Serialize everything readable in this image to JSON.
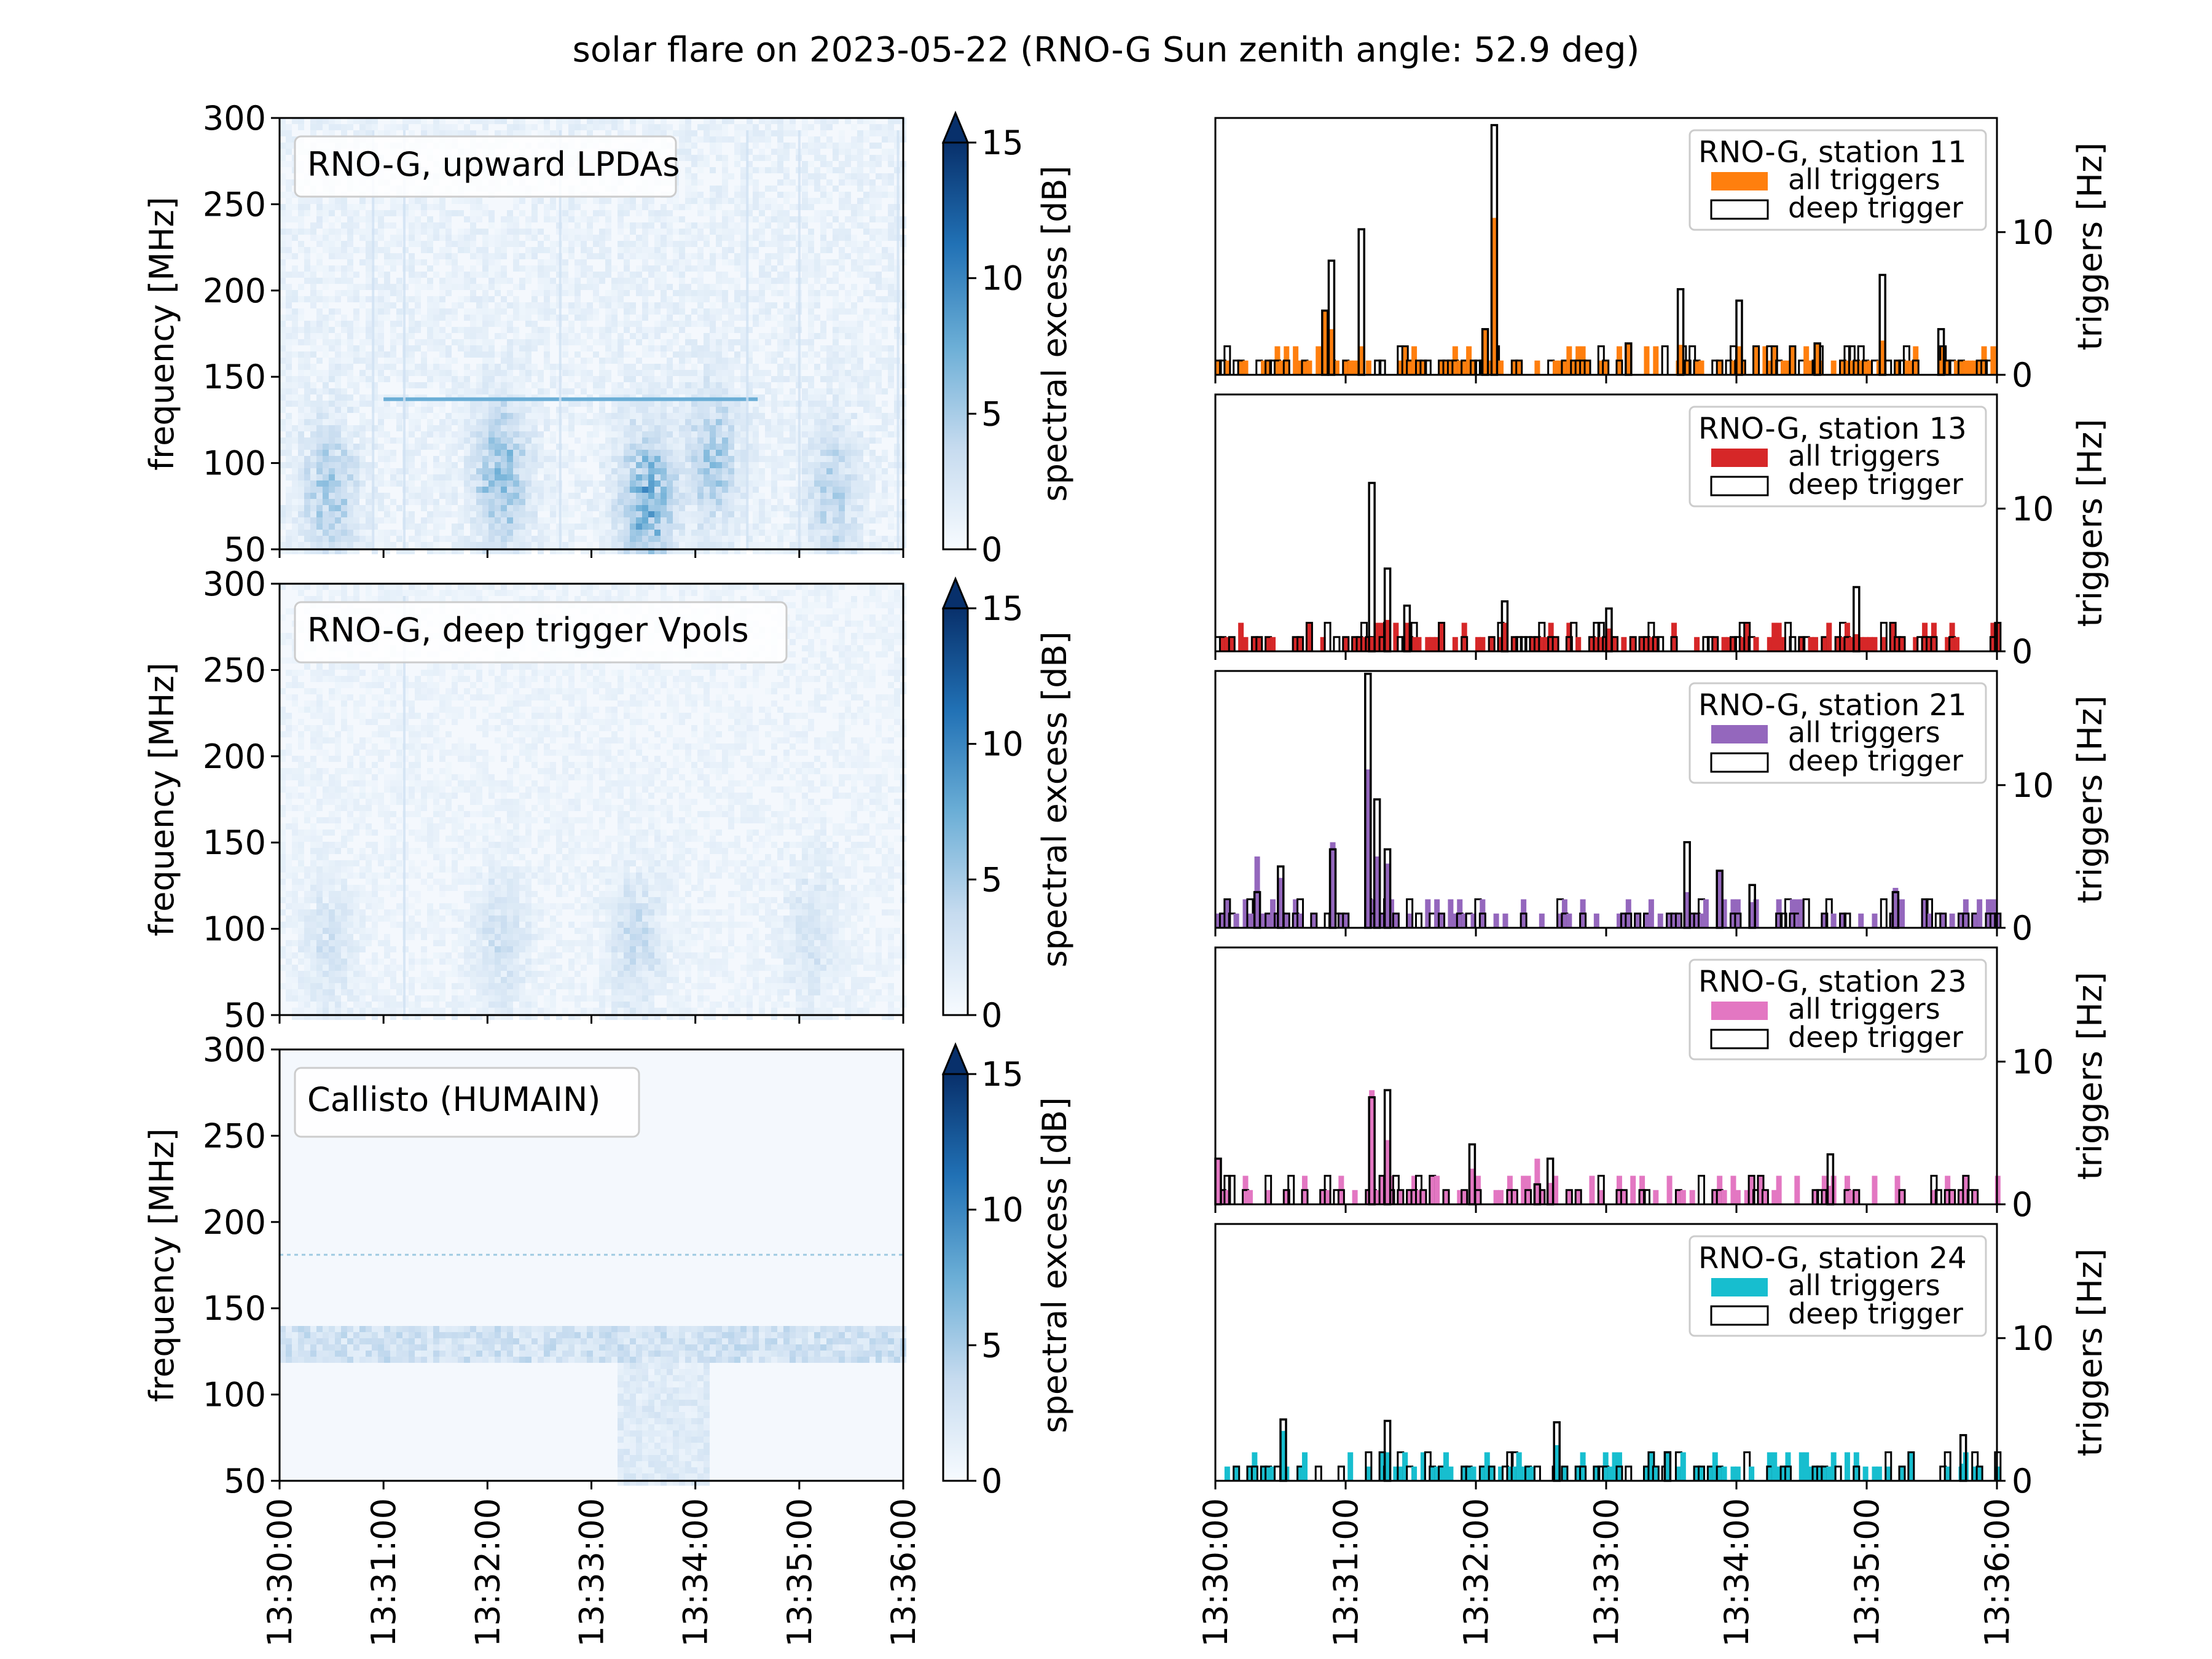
{
  "figure": {
    "title": "solar flare on 2023-05-22 (RNO-G Sun zenith angle: 52.9 deg)",
    "time_ticks": [
      "13:30:00",
      "13:31:00",
      "13:32:00",
      "13:33:00",
      "13:34:00",
      "13:35:00",
      "13:36:00"
    ]
  },
  "chart_data": [
    {
      "type": "heatmap",
      "id": "lpda",
      "label": "RNO-G, upward LPDAs",
      "xlabel": "",
      "ylabel": "frequency [MHz]",
      "xlim_minutes": [
        0,
        6
      ],
      "ylim": [
        50,
        300
      ],
      "yticks": [
        "50",
        "100",
        "150",
        "200",
        "250",
        "300"
      ],
      "colorbar": {
        "label": "spectral excess [dB]",
        "range": [
          0,
          15
        ],
        "ticks": [
          "0",
          "5",
          "10",
          "15"
        ],
        "extend": "max"
      },
      "features": {
        "noise_level": 0.13,
        "band_lines_mhz": [
          {
            "freq": 137,
            "t_start": 1.0,
            "t_end": 4.6,
            "strength": 0.5
          }
        ],
        "blobs": [
          {
            "t": 0.45,
            "f": 85,
            "strength": 0.32
          },
          {
            "t": 2.1,
            "f": 95,
            "strength": 0.4
          },
          {
            "t": 3.5,
            "f": 80,
            "strength": 0.5
          },
          {
            "t": 4.15,
            "f": 105,
            "strength": 0.3
          },
          {
            "t": 5.3,
            "f": 85,
            "strength": 0.25
          }
        ],
        "spikes_minutes": [
          0.9,
          1.2,
          2.7,
          4.5,
          5.0,
          5.95
        ]
      }
    },
    {
      "type": "heatmap",
      "id": "vpol",
      "label": "RNO-G, deep trigger Vpols",
      "xlabel": "",
      "ylabel": "frequency [MHz]",
      "xlim_minutes": [
        0,
        6
      ],
      "ylim": [
        50,
        300
      ],
      "yticks": [
        "50",
        "100",
        "150",
        "200",
        "250",
        "300"
      ],
      "colorbar": {
        "label": "spectral excess [dB]",
        "range": [
          0,
          15
        ],
        "ticks": [
          "0",
          "5",
          "10",
          "15"
        ],
        "extend": "max"
      },
      "features": {
        "noise_level": 0.1,
        "band_lines_mhz": [],
        "blobs": [
          {
            "t": 0.45,
            "f": 90,
            "strength": 0.15
          },
          {
            "t": 2.1,
            "f": 95,
            "strength": 0.18
          },
          {
            "t": 3.4,
            "f": 95,
            "strength": 0.22
          },
          {
            "t": 5.1,
            "f": 100,
            "strength": 0.15
          }
        ],
        "spikes_minutes": [
          1.2
        ]
      }
    },
    {
      "type": "heatmap",
      "id": "callisto",
      "label": "Callisto (HUMAIN)",
      "xlabel": "",
      "ylabel": "frequency [MHz]",
      "xlim_minutes": [
        0,
        6
      ],
      "ylim": [
        50,
        300
      ],
      "yticks": [
        "50",
        "100",
        "150",
        "200",
        "250",
        "300"
      ],
      "colorbar": {
        "label": "spectral excess [dB]",
        "range": [
          0,
          15
        ],
        "ticks": [
          "0",
          "5",
          "10",
          "15"
        ],
        "extend": "max"
      },
      "features": {
        "noise_level": 0.02,
        "band_region_mhz": [
          120,
          142
        ],
        "band_line_mhz": 181,
        "flare_region": {
          "t_start": 3.2,
          "t_end": 4.1,
          "f_start": 50,
          "f_end": 120
        }
      }
    },
    {
      "type": "bar",
      "id": "st11",
      "label": "RNO-G, station 11",
      "ylabel": "triggers [Hz]",
      "ylim": [
        0,
        18
      ],
      "yticks": [
        0,
        10
      ],
      "all_color": "#ff7f0e",
      "legend": [
        "all triggers",
        "deep trigger"
      ],
      "peaks": [
        {
          "t": 0.82,
          "all": 4.5,
          "deep": 4.5
        },
        {
          "t": 0.87,
          "all": 3.2,
          "deep": 8
        },
        {
          "t": 1.1,
          "all": 2,
          "deep": 10.2
        },
        {
          "t": 2.12,
          "all": 11,
          "deep": 17.5
        },
        {
          "t": 2.05,
          "all": 3.2,
          "deep": 3.2
        },
        {
          "t": 3.15,
          "all": 2.2,
          "deep": 2.2
        },
        {
          "t": 3.55,
          "all": 2.1,
          "deep": 6
        },
        {
          "t": 4.0,
          "all": 2,
          "deep": 5.2
        },
        {
          "t": 4.6,
          "all": 2.2,
          "deep": 2.2
        },
        {
          "t": 5.1,
          "all": 2.4,
          "deep": 7
        },
        {
          "t": 5.55,
          "all": 1,
          "deep": 3.2
        }
      ]
    },
    {
      "type": "bar",
      "id": "st13",
      "label": "RNO-G, station 13",
      "ylabel": "triggers [Hz]",
      "ylim": [
        0,
        18
      ],
      "yticks": [
        0,
        10
      ],
      "all_color": "#d62728",
      "legend": [
        "all triggers",
        "deep trigger"
      ],
      "peaks": [
        {
          "t": 1.18,
          "all": 1,
          "deep": 11.8
        },
        {
          "t": 1.3,
          "all": 2.2,
          "deep": 5.8
        },
        {
          "t": 1.45,
          "all": 2,
          "deep": 3.2
        },
        {
          "t": 2.2,
          "all": 2,
          "deep": 3.5
        },
        {
          "t": 3.0,
          "all": 1.6,
          "deep": 3
        },
        {
          "t": 4.9,
          "all": 1.2,
          "deep": 4.5
        }
      ]
    },
    {
      "type": "bar",
      "id": "st21",
      "label": "RNO-G, station 21",
      "ylabel": "triggers [Hz]",
      "ylim": [
        0,
        18
      ],
      "yticks": [
        0,
        10
      ],
      "all_color": "#9467bd",
      "legend": [
        "all triggers",
        "deep trigger"
      ],
      "peaks": [
        {
          "t": 0.3,
          "all": 5,
          "deep": 2.5
        },
        {
          "t": 0.48,
          "all": 3.5,
          "deep": 4.3
        },
        {
          "t": 0.88,
          "all": 6,
          "deep": 5.5
        },
        {
          "t": 1.15,
          "all": 11.1,
          "deep": 17.8
        },
        {
          "t": 1.22,
          "all": 5,
          "deep": 9
        },
        {
          "t": 1.3,
          "all": 4.5,
          "deep": 5.5
        },
        {
          "t": 3.6,
          "all": 2.5,
          "deep": 6
        },
        {
          "t": 3.85,
          "all": 4,
          "deep": 4
        },
        {
          "t": 4.1,
          "all": 1.8,
          "deep": 3
        },
        {
          "t": 5.2,
          "all": 2.8,
          "deep": 2.5
        }
      ]
    },
    {
      "type": "bar",
      "id": "st23",
      "label": "RNO-G, station 23",
      "ylabel": "triggers [Hz]",
      "ylim": [
        0,
        18
      ],
      "yticks": [
        0,
        10
      ],
      "all_color": "#e377c2",
      "legend": [
        "all triggers",
        "deep trigger"
      ],
      "peaks": [
        {
          "t": 0.0,
          "all": 3.2,
          "deep": 3.2
        },
        {
          "t": 1.18,
          "all": 8,
          "deep": 7.5
        },
        {
          "t": 1.3,
          "all": 4.5,
          "deep": 8
        },
        {
          "t": 1.95,
          "all": 2.5,
          "deep": 4.2
        },
        {
          "t": 2.45,
          "all": 3.2,
          "deep": 1.4
        },
        {
          "t": 2.55,
          "all": 1.5,
          "deep": 3.2
        },
        {
          "t": 4.7,
          "all": 1.3,
          "deep": 3.5
        }
      ]
    },
    {
      "type": "bar",
      "id": "st24",
      "label": "RNO-G, station 24",
      "ylabel": "triggers [Hz]",
      "ylim": [
        0,
        18
      ],
      "yticks": [
        0,
        10
      ],
      "all_color": "#17becf",
      "legend": [
        "all triggers",
        "deep trigger"
      ],
      "peaks": [
        {
          "t": 0.5,
          "all": 3.5,
          "deep": 4.3
        },
        {
          "t": 1.3,
          "all": 2,
          "deep": 4.2
        },
        {
          "t": 2.6,
          "all": 2.5,
          "deep": 4.1
        },
        {
          "t": 3.45,
          "all": 2,
          "deep": 2
        },
        {
          "t": 5.72,
          "all": 1.2,
          "deep": 3.2
        }
      ]
    }
  ]
}
